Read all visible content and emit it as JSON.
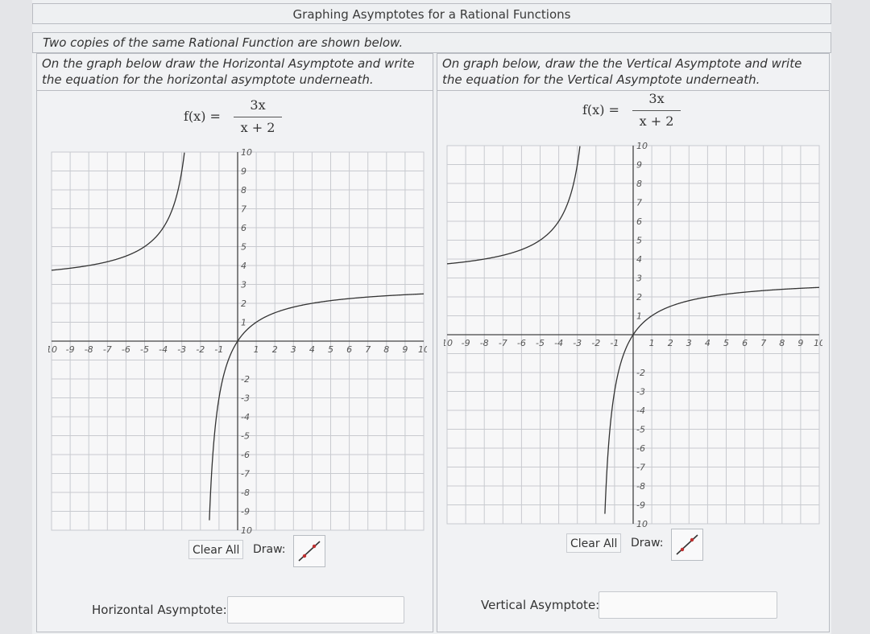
{
  "title": "Graphing Asymptotes for a Rational Functions",
  "subtitle": "Two copies of the same Rational Function are shown below.",
  "left_panel": {
    "instructions_line1": "On the graph below draw the Horizontal Asymptote and write",
    "instructions_line2": "the equation for the horizontal asymptote underneath.",
    "formula_lhs": "f(x) =",
    "formula_numerator": "3x",
    "formula_denominator": "x + 2",
    "clear_label": "Clear All",
    "draw_label": "Draw:",
    "tool_icon": "line-draw-tool-icon",
    "answer_label": "Horizontal Asymptote:",
    "answer_value": ""
  },
  "right_panel": {
    "instructions_line1": "On graph below, draw the the Vertical Asymptote and write",
    "instructions_line2": "the equation for the Vertical Asymptote underneath.",
    "formula_lhs": "f(x) =",
    "formula_numerator": "3x",
    "formula_denominator": "x + 2",
    "clear_label": "Clear All",
    "draw_label": "Draw:",
    "tool_icon": "line-draw-tool-icon",
    "answer_label": "Vertical Asymptote:",
    "answer_value": ""
  },
  "graph": {
    "x_range": [
      -10,
      10
    ],
    "y_range": [
      -10,
      10
    ],
    "grid": true,
    "function": "3x/(x+2)",
    "x_ticks": [
      "10",
      "-9",
      "-8",
      "-7",
      "-6",
      "-5",
      "-4",
      "-3",
      "-2",
      "-1",
      "1",
      "2",
      "3",
      "4",
      "5",
      "6",
      "7",
      "8",
      "9",
      "10"
    ],
    "y_ticks": [
      "10",
      "9",
      "8",
      "7",
      "6",
      "5",
      "4",
      "3",
      "2",
      "1",
      "-2",
      "-3",
      "-4",
      "-5",
      "-6",
      "-7",
      "-8",
      "-9",
      "10"
    ]
  },
  "colors": {
    "grid": "#c8cacf",
    "axis": "#444444",
    "curve": "#333333",
    "tool_accent": "#c03030"
  }
}
